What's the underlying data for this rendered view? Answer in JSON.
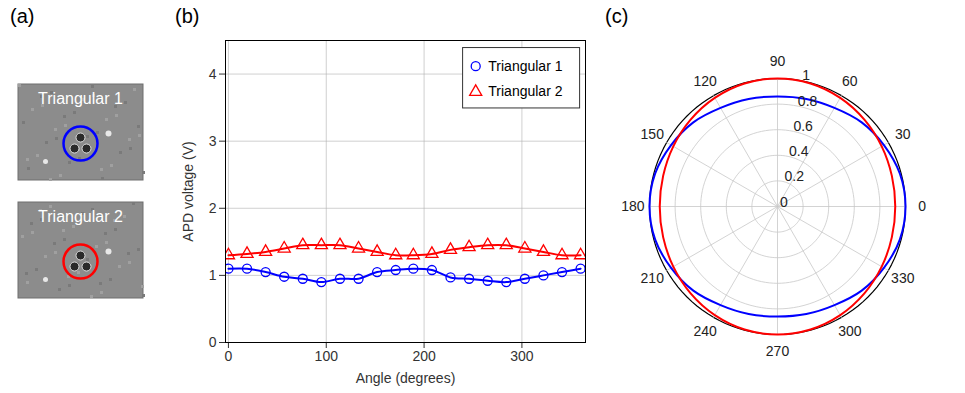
{
  "chart_data": [
    {
      "type": "image",
      "panel_label": "(a)",
      "images": [
        {
          "label": "Triangular 1",
          "color": "#0000ff"
        },
        {
          "label": "Triangular 2",
          "color": "#ff0000"
        }
      ]
    },
    {
      "type": "line",
      "panel_label": "(b)",
      "x_label": "Angle (degrees)",
      "y_label": "APD voltage (V)",
      "x": [
        0,
        19,
        38,
        57,
        76,
        95,
        114,
        133,
        152,
        171,
        189,
        208,
        227,
        246,
        265,
        284,
        303,
        322,
        341,
        360
      ],
      "series": [
        {
          "name": "Triangular 1",
          "color": "#0000ff",
          "marker": "circle",
          "line_style": "solid",
          "values": [
            1.1,
            1.1,
            1.05,
            0.98,
            0.95,
            0.9,
            0.95,
            0.95,
            1.05,
            1.08,
            1.1,
            1.08,
            0.97,
            0.95,
            0.92,
            0.9,
            0.95,
            1.0,
            1.05,
            1.1
          ]
        },
        {
          "name": "Triangular 2",
          "color": "#ff0000",
          "marker": "triangle",
          "line_style": "solid",
          "values": [
            1.3,
            1.32,
            1.35,
            1.4,
            1.45,
            1.45,
            1.45,
            1.4,
            1.35,
            1.3,
            1.3,
            1.32,
            1.38,
            1.42,
            1.45,
            1.45,
            1.4,
            1.35,
            1.3,
            1.3
          ]
        }
      ],
      "xlim": [
        -3,
        365
      ],
      "xticks": [
        0,
        100,
        200,
        300
      ],
      "ylim": [
        0,
        4.5
      ],
      "yticks": [
        0,
        1,
        2,
        3,
        4
      ],
      "grid": true,
      "legend": "upper right"
    },
    {
      "type": "polar",
      "panel_label": "(c)",
      "theta": [
        0,
        15,
        30,
        45,
        60,
        75,
        90,
        105,
        120,
        135,
        150,
        165,
        180,
        195,
        210,
        225,
        240,
        255,
        270,
        285,
        300,
        315,
        330,
        345
      ],
      "series": [
        {
          "color": "#0000ff",
          "line_style": "solid",
          "values": [
            1.0,
            0.99,
            0.96,
            0.93,
            0.89,
            0.87,
            0.86,
            0.87,
            0.89,
            0.93,
            0.96,
            0.99,
            1.0,
            0.99,
            0.96,
            0.93,
            0.89,
            0.87,
            0.86,
            0.87,
            0.89,
            0.93,
            0.96,
            0.99
          ]
        },
        {
          "color": "#ff0000",
          "line_style": "solid",
          "values": [
            0.92,
            0.925,
            0.94,
            0.96,
            0.98,
            0.995,
            1.0,
            0.995,
            0.98,
            0.96,
            0.94,
            0.925,
            0.92,
            0.925,
            0.94,
            0.96,
            0.98,
            0.995,
            1.0,
            0.995,
            0.98,
            0.96,
            0.94,
            0.925
          ]
        }
      ],
      "rlim": [
        0,
        1
      ],
      "rticks": [
        0,
        0.2,
        0.4,
        0.6,
        0.8,
        1
      ],
      "angle_ticks": [
        0,
        30,
        60,
        90,
        120,
        150,
        180,
        210,
        240,
        270,
        300,
        330
      ],
      "grid": true
    }
  ]
}
